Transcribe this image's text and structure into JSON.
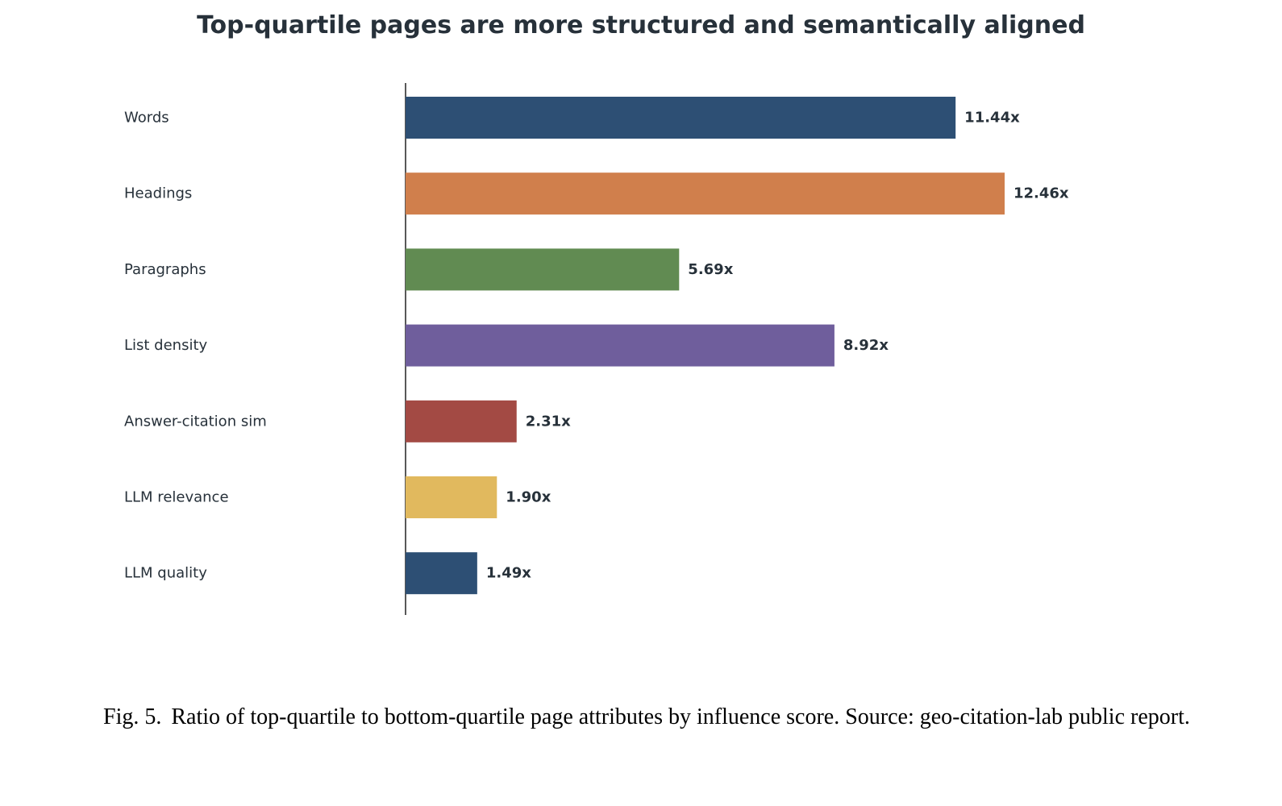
{
  "chart_data": {
    "type": "bar",
    "orientation": "horizontal",
    "title": "Top-quartile pages are more structured and semantically aligned",
    "categories": [
      "Words",
      "Headings",
      "Paragraphs",
      "List density",
      "Answer-citation sim",
      "LLM relevance",
      "LLM quality"
    ],
    "values": [
      11.44,
      12.46,
      5.69,
      8.92,
      2.31,
      1.9,
      1.49
    ],
    "value_labels": [
      "11.44x",
      "12.46x",
      "5.69x",
      "8.92x",
      "2.31x",
      "1.90x",
      "1.49x"
    ],
    "colors": [
      "#2d4f74",
      "#d07f4c",
      "#618b52",
      "#6f5e9c",
      "#a34a44",
      "#e1b95e",
      "#2d4f74"
    ],
    "xlim": [
      0,
      20
    ],
    "grid": false
  },
  "caption": {
    "figure_label": "Fig. 5.",
    "text": "Ratio of top-quartile to bottom-quartile page attributes by influence score. Source: geo-citation-lab public report."
  }
}
